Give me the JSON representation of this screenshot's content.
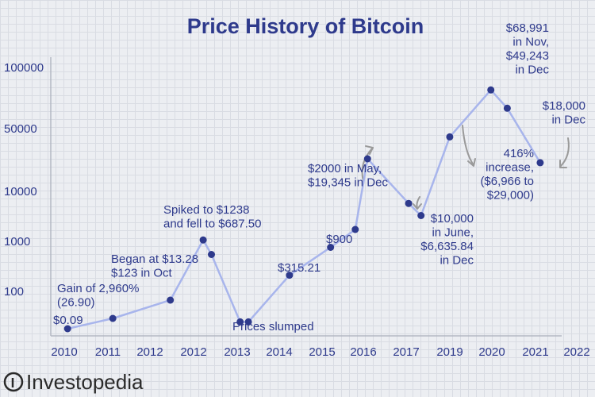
{
  "chart_data": {
    "type": "line",
    "title": "Price History of Bitcoin",
    "y_scale": "log",
    "xlabel": "",
    "ylabel": "",
    "x_ticks": [
      "2010",
      "2011",
      "2012",
      "2012",
      "2013",
      "2014",
      "2015",
      "2016",
      "2017",
      "2019",
      "2020",
      "2021",
      "2022"
    ],
    "y_ticks": [
      "100000",
      "50000",
      "10000",
      "1000",
      "100"
    ],
    "series": [
      {
        "x": [
          2010.1,
          2011.2,
          2012.6,
          2013.4,
          2013.6,
          2014.3,
          2014.5,
          2015.5,
          2016.5,
          2017.1,
          2017.4,
          2018.4,
          2018.7,
          2019.4,
          2020.4,
          2020.8,
          2021.6
        ],
        "values": [
          0.09,
          0.5,
          123,
          1238,
          687.5,
          0.28,
          0.28,
          315.21,
          900,
          2000,
          19345,
          6635.84,
          3800,
          29000,
          68991,
          49243,
          18000
        ],
        "color": "#a8b5ec"
      }
    ],
    "point_color": "#2e3a8c",
    "line_color": "#a8b5ec",
    "arrow_color": "#9a9a9a",
    "grid": true,
    "legend": "none",
    "annotations": [
      {
        "lines": [
          "$0.09"
        ]
      },
      {
        "lines": [
          "Gain of 2,960%",
          "(26.90)"
        ]
      },
      {
        "lines": [
          "Began at $13.28",
          "$123 in Oct"
        ]
      },
      {
        "lines": [
          "Spiked to $1238",
          "and fell to $687.50"
        ]
      },
      {
        "lines": [
          "Prices slumped"
        ]
      },
      {
        "lines": [
          "$315.21"
        ]
      },
      {
        "lines": [
          "$900"
        ]
      },
      {
        "lines": [
          "$2000 in May,",
          "$19,345 in Dec"
        ]
      },
      {
        "lines": [
          "$10,000",
          "in June,",
          "$6,635.84",
          "in Dec"
        ]
      },
      {
        "lines": [
          "416%",
          "increase,",
          "($6,966 to",
          "$29,000)"
        ]
      },
      {
        "lines": [
          "$68,991",
          "in Nov,",
          "$49,243",
          "in Dec"
        ]
      },
      {
        "lines": [
          "$18,000",
          "in Dec"
        ]
      }
    ]
  },
  "brand": {
    "name": "Investopedia"
  }
}
